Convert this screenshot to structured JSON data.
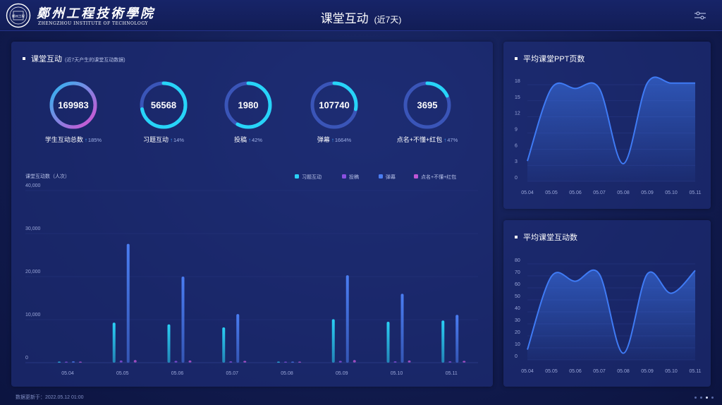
{
  "header": {
    "school_name": "鄭州工程技術學院",
    "school_en": "ZHENGZHOU INSTITUTE OF TECHNOLOGY",
    "logo_text": "鄭州工程",
    "title": "课堂互动",
    "subtitle": "(近7天)"
  },
  "main_panel": {
    "title": "课堂互动",
    "note": "(近7天产生的课堂互动数据)",
    "stats": [
      {
        "value": "169983",
        "label": "学生互动总数",
        "trend": "185%",
        "ring_fraction": 1.0,
        "gradient": [
          "#d94fd0",
          "#2bb8f2"
        ]
      },
      {
        "value": "56568",
        "label": "习题互动",
        "trend": "14%",
        "ring_fraction": 0.72,
        "gradient": [
          "#27d4f8",
          "#27d4f8"
        ]
      },
      {
        "value": "1980",
        "label": "投稿",
        "trend": "42%",
        "ring_fraction": 0.58,
        "gradient": [
          "#27d4f8",
          "#27d4f8"
        ]
      },
      {
        "value": "107740",
        "label": "弹幕",
        "trend": "1664%",
        "ring_fraction": 0.28,
        "gradient": [
          "#27d4f8",
          "#27d4f8"
        ]
      },
      {
        "value": "3695",
        "label": "点名+不懂+红包",
        "trend": "47%",
        "ring_fraction": 0.18,
        "gradient": [
          "#27d4f8",
          "#27d4f8"
        ]
      }
    ]
  },
  "chart_data": [
    {
      "type": "bar",
      "ylabel": "课堂互动数（人次）",
      "ylim": [
        0,
        40000
      ],
      "yticks": [
        "0",
        "10,000",
        "20,000",
        "30,000",
        "40,000"
      ],
      "categories": [
        "05.04",
        "05.05",
        "05.06",
        "05.07",
        "05.08",
        "05.09",
        "05.10",
        "05.11"
      ],
      "legend": "top-right",
      "series": [
        {
          "name": "习题互动",
          "color": "#2ad0f5",
          "values": [
            0,
            9300,
            8900,
            8200,
            0,
            10100,
            9500,
            9800
          ]
        },
        {
          "name": "投稿",
          "color": "#8a4fe0",
          "values": [
            0,
            500,
            400,
            300,
            0,
            400,
            300,
            300
          ]
        },
        {
          "name": "弹幕",
          "color": "#4a7df2",
          "values": [
            300,
            27600,
            20000,
            11300,
            0,
            20300,
            16000,
            11100
          ]
        },
        {
          "name": "点名+不懂+红包",
          "color": "#c056d6",
          "values": [
            0,
            600,
            500,
            400,
            0,
            600,
            500,
            400
          ]
        }
      ]
    },
    {
      "type": "area",
      "title": "平均课堂PPT页数",
      "ylim": [
        0,
        18
      ],
      "yticks": [
        "0",
        "3",
        "6",
        "9",
        "12",
        "15",
        "18"
      ],
      "categories": [
        "05.04",
        "05.05",
        "05.06",
        "05.07",
        "05.08",
        "05.09",
        "05.10",
        "05.11"
      ],
      "values": [
        3,
        16.5,
        16.5,
        16.5,
        2.5,
        17.5,
        17.5,
        17.5
      ],
      "color": "#3f7bf5"
    },
    {
      "type": "area",
      "title": "平均课堂互动数",
      "ylim": [
        0,
        80
      ],
      "yticks": [
        "0",
        "10",
        "20",
        "30",
        "40",
        "50",
        "60",
        "70",
        "80"
      ],
      "categories": [
        "05.04",
        "05.05",
        "05.06",
        "05.07",
        "05.08",
        "05.09",
        "05.10",
        "05.11"
      ],
      "values": [
        5,
        66,
        62,
        68,
        2,
        68,
        52,
        71
      ],
      "color": "#3f7bf5"
    }
  ],
  "footer": {
    "update_text": "数据更新于：2022.05.12 01:00"
  }
}
